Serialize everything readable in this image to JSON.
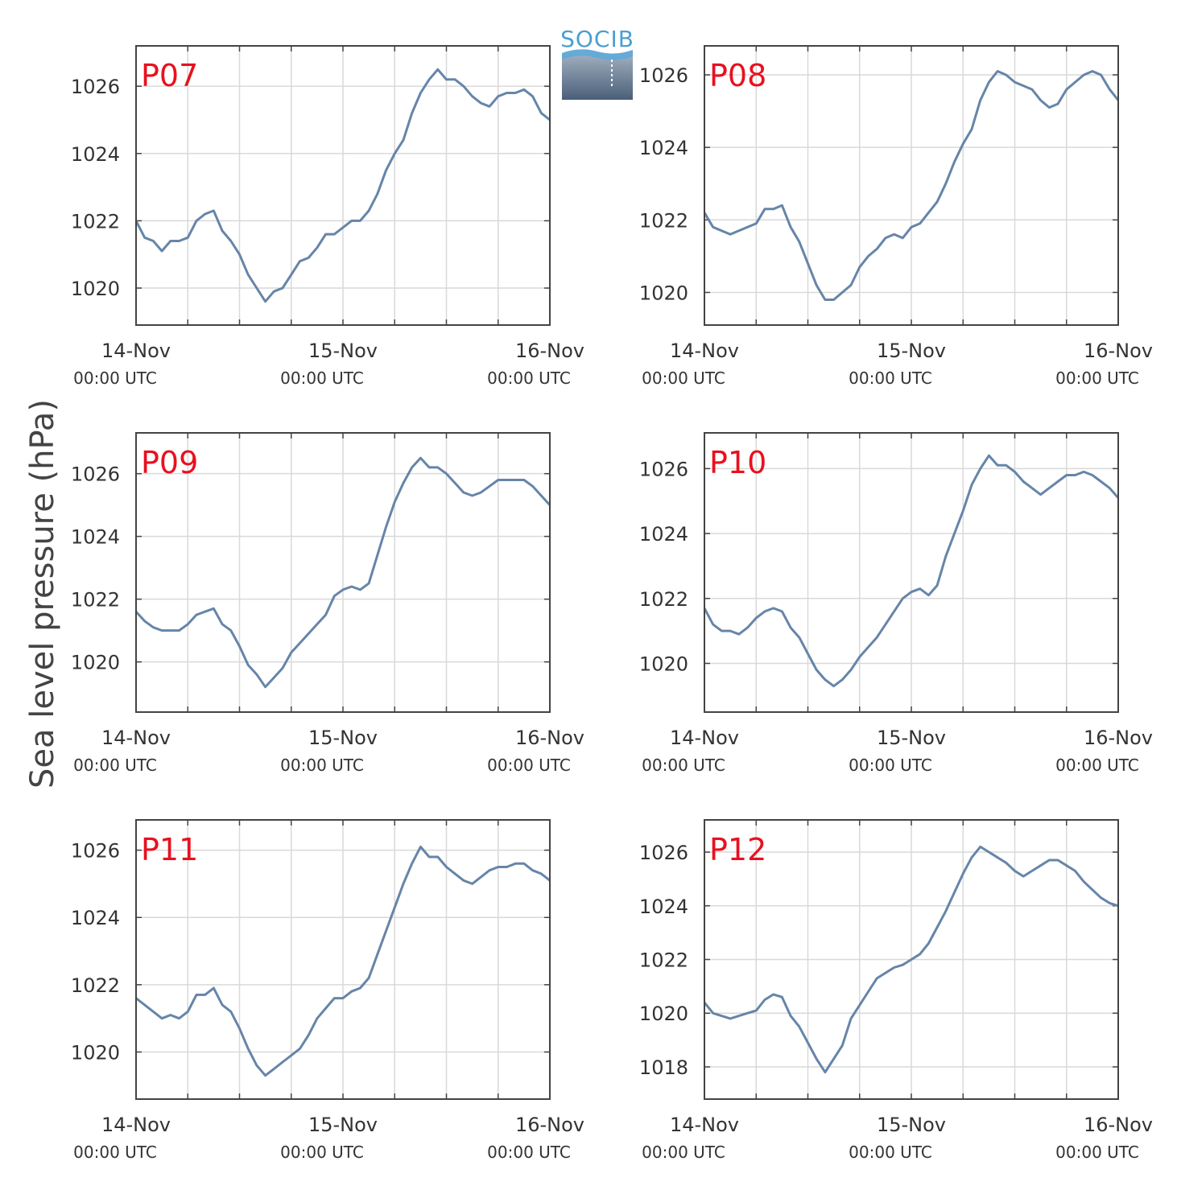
{
  "figure": {
    "ylabel": "Sea level pressure (hPa)",
    "logo_text": "SOCIB",
    "line_color": "#6685a8",
    "label_color": "#e8111f",
    "grid_color": "#d9d9d9"
  },
  "chart_data": [
    {
      "type": "line",
      "name": "P07",
      "xticks": [
        [
          "14-Nov",
          "00:00 UTC"
        ],
        [
          "15-Nov",
          "00:00 UTC"
        ],
        [
          "16-Nov",
          "00:00 UTC"
        ]
      ],
      "xlim_hours": [
        0,
        48
      ],
      "ylim": [
        1018.9,
        1027.2
      ],
      "yticks": [
        1020,
        1022,
        1024,
        1026
      ],
      "hours": [
        0,
        1,
        2,
        3,
        4,
        5,
        6,
        7,
        8,
        9,
        10,
        11,
        12,
        13,
        14,
        15,
        16,
        17,
        18,
        19,
        20,
        21,
        22,
        23,
        24,
        25,
        26,
        27,
        28,
        29,
        30,
        31,
        32,
        33,
        34,
        35,
        36,
        37,
        38,
        39,
        40,
        41,
        42,
        43,
        44,
        45,
        46,
        47,
        48
      ],
      "values": [
        1022.0,
        1021.5,
        1021.4,
        1021.1,
        1021.4,
        1021.4,
        1021.5,
        1022.0,
        1022.2,
        1022.3,
        1021.7,
        1021.4,
        1021.0,
        1020.4,
        1020.0,
        1019.6,
        1019.9,
        1020.0,
        1020.4,
        1020.8,
        1020.9,
        1021.2,
        1021.6,
        1021.6,
        1021.8,
        1022.0,
        1022.0,
        1022.3,
        1022.8,
        1023.5,
        1024.0,
        1024.4,
        1025.2,
        1025.8,
        1026.2,
        1026.5,
        1026.2,
        1026.2,
        1026.0,
        1025.7,
        1025.5,
        1025.4,
        1025.7,
        1025.8,
        1025.8,
        1025.9,
        1025.7,
        1025.2,
        1025.0
      ]
    },
    {
      "type": "line",
      "name": "P08",
      "xticks": [
        [
          "14-Nov",
          "00:00 UTC"
        ],
        [
          "15-Nov",
          "00:00 UTC"
        ],
        [
          "16-Nov",
          "00:00 UTC"
        ]
      ],
      "xlim_hours": [
        0,
        48
      ],
      "ylim": [
        1019.1,
        1026.8
      ],
      "yticks": [
        1020,
        1022,
        1024,
        1026
      ],
      "hours": [
        0,
        1,
        2,
        3,
        4,
        5,
        6,
        7,
        8,
        9,
        10,
        11,
        12,
        13,
        14,
        15,
        16,
        17,
        18,
        19,
        20,
        21,
        22,
        23,
        24,
        25,
        26,
        27,
        28,
        29,
        30,
        31,
        32,
        33,
        34,
        35,
        36,
        37,
        38,
        39,
        40,
        41,
        42,
        43,
        44,
        45,
        46,
        47,
        48
      ],
      "values": [
        1022.2,
        1021.8,
        1021.7,
        1021.6,
        1021.7,
        1021.8,
        1021.9,
        1022.3,
        1022.3,
        1022.4,
        1021.8,
        1021.4,
        1020.8,
        1020.2,
        1019.8,
        1019.8,
        1020.0,
        1020.2,
        1020.7,
        1021.0,
        1021.2,
        1021.5,
        1021.6,
        1021.5,
        1021.8,
        1021.9,
        1022.2,
        1022.5,
        1023.0,
        1023.6,
        1024.1,
        1024.5,
        1025.3,
        1025.8,
        1026.1,
        1026.0,
        1025.8,
        1025.7,
        1025.6,
        1025.3,
        1025.1,
        1025.2,
        1025.6,
        1025.8,
        1026.0,
        1026.1,
        1026.0,
        1025.6,
        1025.3
      ]
    },
    {
      "type": "line",
      "name": "P09",
      "xticks": [
        [
          "14-Nov",
          "00:00 UTC"
        ],
        [
          "15-Nov",
          "00:00 UTC"
        ],
        [
          "16-Nov",
          "00:00 UTC"
        ]
      ],
      "xlim_hours": [
        0,
        48
      ],
      "ylim": [
        1018.4,
        1027.3
      ],
      "yticks": [
        1020,
        1022,
        1024,
        1026
      ],
      "hours": [
        0,
        1,
        2,
        3,
        4,
        5,
        6,
        7,
        8,
        9,
        10,
        11,
        12,
        13,
        14,
        15,
        16,
        17,
        18,
        19,
        20,
        21,
        22,
        23,
        24,
        25,
        26,
        27,
        28,
        29,
        30,
        31,
        32,
        33,
        34,
        35,
        36,
        37,
        38,
        39,
        40,
        41,
        42,
        43,
        44,
        45,
        46,
        47,
        48
      ],
      "values": [
        1021.6,
        1021.3,
        1021.1,
        1021.0,
        1021.0,
        1021.0,
        1021.2,
        1021.5,
        1021.6,
        1021.7,
        1021.2,
        1021.0,
        1020.5,
        1019.9,
        1019.6,
        1019.2,
        1019.5,
        1019.8,
        1020.3,
        1020.6,
        1020.9,
        1021.2,
        1021.5,
        1022.1,
        1022.3,
        1022.4,
        1022.3,
        1022.5,
        1023.4,
        1024.3,
        1025.1,
        1025.7,
        1026.2,
        1026.5,
        1026.2,
        1026.2,
        1026.0,
        1025.7,
        1025.4,
        1025.3,
        1025.4,
        1025.6,
        1025.8,
        1025.8,
        1025.8,
        1025.8,
        1025.6,
        1025.3,
        1025.0
      ]
    },
    {
      "type": "line",
      "name": "P10",
      "xticks": [
        [
          "14-Nov",
          "00:00 UTC"
        ],
        [
          "15-Nov",
          "00:00 UTC"
        ],
        [
          "16-Nov",
          "00:00 UTC"
        ]
      ],
      "xlim_hours": [
        0,
        48
      ],
      "ylim": [
        1018.5,
        1027.1
      ],
      "yticks": [
        1020,
        1022,
        1024,
        1026
      ],
      "hours": [
        0,
        1,
        2,
        3,
        4,
        5,
        6,
        7,
        8,
        9,
        10,
        11,
        12,
        13,
        14,
        15,
        16,
        17,
        18,
        19,
        20,
        21,
        22,
        23,
        24,
        25,
        26,
        27,
        28,
        29,
        30,
        31,
        32,
        33,
        34,
        35,
        36,
        37,
        38,
        39,
        40,
        41,
        42,
        43,
        44,
        45,
        46,
        47,
        48
      ],
      "values": [
        1021.7,
        1021.2,
        1021.0,
        1021.0,
        1020.9,
        1021.1,
        1021.4,
        1021.6,
        1021.7,
        1021.6,
        1021.1,
        1020.8,
        1020.3,
        1019.8,
        1019.5,
        1019.3,
        1019.5,
        1019.8,
        1020.2,
        1020.5,
        1020.8,
        1021.2,
        1021.6,
        1022.0,
        1022.2,
        1022.3,
        1022.1,
        1022.4,
        1023.3,
        1024.0,
        1024.7,
        1025.5,
        1026.0,
        1026.4,
        1026.1,
        1026.1,
        1025.9,
        1025.6,
        1025.4,
        1025.2,
        1025.4,
        1025.6,
        1025.8,
        1025.8,
        1025.9,
        1025.8,
        1025.6,
        1025.4,
        1025.1
      ]
    },
    {
      "type": "line",
      "name": "P11",
      "xticks": [
        [
          "14-Nov",
          "00:00 UTC"
        ],
        [
          "15-Nov",
          "00:00 UTC"
        ],
        [
          "16-Nov",
          "00:00 UTC"
        ]
      ],
      "xlim_hours": [
        0,
        48
      ],
      "ylim": [
        1018.6,
        1026.9
      ],
      "yticks": [
        1020,
        1022,
        1024,
        1026
      ],
      "hours": [
        0,
        1,
        2,
        3,
        4,
        5,
        6,
        7,
        8,
        9,
        10,
        11,
        12,
        13,
        14,
        15,
        16,
        17,
        18,
        19,
        20,
        21,
        22,
        23,
        24,
        25,
        26,
        27,
        28,
        29,
        30,
        31,
        32,
        33,
        34,
        35,
        36,
        37,
        38,
        39,
        40,
        41,
        42,
        43,
        44,
        45,
        46,
        47,
        48
      ],
      "values": [
        1021.6,
        1021.4,
        1021.2,
        1021.0,
        1021.1,
        1021.0,
        1021.2,
        1021.7,
        1021.7,
        1021.9,
        1021.4,
        1021.2,
        1020.7,
        1020.1,
        1019.6,
        1019.3,
        1019.5,
        1019.7,
        1019.9,
        1020.1,
        1020.5,
        1021.0,
        1021.3,
        1021.6,
        1021.6,
        1021.8,
        1021.9,
        1022.2,
        1022.9,
        1023.6,
        1024.3,
        1025.0,
        1025.6,
        1026.1,
        1025.8,
        1025.8,
        1025.5,
        1025.3,
        1025.1,
        1025.0,
        1025.2,
        1025.4,
        1025.5,
        1025.5,
        1025.6,
        1025.6,
        1025.4,
        1025.3,
        1025.1
      ]
    },
    {
      "type": "line",
      "name": "P12",
      "xticks": [
        [
          "14-Nov",
          "00:00 UTC"
        ],
        [
          "15-Nov",
          "00:00 UTC"
        ],
        [
          "16-Nov",
          "00:00 UTC"
        ]
      ],
      "xlim_hours": [
        0,
        48
      ],
      "ylim": [
        1016.8,
        1027.2
      ],
      "yticks": [
        1018,
        1020,
        1022,
        1024,
        1026
      ],
      "hours": [
        0,
        1,
        2,
        3,
        4,
        5,
        6,
        7,
        8,
        9,
        10,
        11,
        12,
        13,
        14,
        15,
        16,
        17,
        18,
        19,
        20,
        21,
        22,
        23,
        24,
        25,
        26,
        27,
        28,
        29,
        30,
        31,
        32,
        33,
        34,
        35,
        36,
        37,
        38,
        39,
        40,
        41,
        42,
        43,
        44,
        45,
        46,
        47,
        48
      ],
      "values": [
        1020.4,
        1020.0,
        1019.9,
        1019.8,
        1019.9,
        1020.0,
        1020.1,
        1020.5,
        1020.7,
        1020.6,
        1019.9,
        1019.5,
        1018.9,
        1018.3,
        1017.8,
        1018.3,
        1018.8,
        1019.8,
        1020.3,
        1020.8,
        1021.3,
        1021.5,
        1021.7,
        1021.8,
        1022.0,
        1022.2,
        1022.6,
        1023.2,
        1023.8,
        1024.5,
        1025.2,
        1025.8,
        1026.2,
        1026.0,
        1025.8,
        1025.6,
        1025.3,
        1025.1,
        1025.3,
        1025.5,
        1025.7,
        1025.7,
        1025.5,
        1025.3,
        1024.9,
        1024.6,
        1024.3,
        1024.1,
        1024.0
      ]
    }
  ]
}
